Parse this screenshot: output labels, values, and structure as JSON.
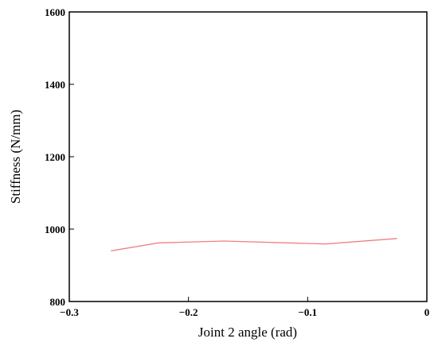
{
  "chart_data": {
    "type": "line",
    "title": "",
    "xlabel": "Joint 2 angle (rad)",
    "ylabel": "Stiffness (N/mm)",
    "xlim": [
      -0.3,
      0
    ],
    "ylim": [
      800,
      1600
    ],
    "xticks": [
      -0.3,
      -0.2,
      -0.1,
      0
    ],
    "xtick_labels": [
      "−0.3",
      "−0.2",
      "−0.1",
      "0"
    ],
    "yticks": [
      800,
      1000,
      1200,
      1400,
      1600
    ],
    "ytick_labels": [
      "800",
      "1000",
      "1200",
      "1400",
      "1600"
    ],
    "grid": false,
    "legend": "none",
    "series": [
      {
        "color": "#f08080",
        "x": [
          -0.265,
          -0.225,
          -0.17,
          -0.085,
          -0.025
        ],
        "y": [
          940,
          962,
          967,
          959,
          974
        ]
      }
    ]
  }
}
